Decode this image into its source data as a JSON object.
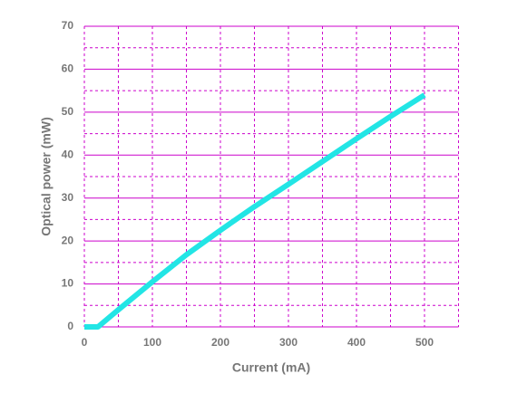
{
  "chart_data": {
    "type": "line",
    "x_label": "Current (mA)",
    "y_label": "Optical power (mW)",
    "xlim": [
      0,
      550
    ],
    "ylim": [
      0,
      70
    ],
    "xticks": [
      0,
      100,
      200,
      300,
      400,
      500
    ],
    "yticks": [
      0,
      10,
      20,
      30,
      40,
      50,
      60,
      70
    ],
    "xminor": [
      50,
      150,
      250,
      350,
      450,
      550
    ],
    "yminor": [
      5,
      15,
      25,
      35,
      45,
      55,
      65
    ],
    "grid": true,
    "grid_color": "#cc00cc",
    "series": [
      {
        "name": "Optical power",
        "color": "#22e5e5",
        "x": [
          0,
          20,
          50,
          100,
          150,
          200,
          250,
          300,
          350,
          400,
          450,
          500
        ],
        "values": [
          0,
          0,
          4,
          10.5,
          16.8,
          22.5,
          28,
          33.2,
          38.5,
          43.8,
          49,
          54
        ]
      }
    ]
  }
}
